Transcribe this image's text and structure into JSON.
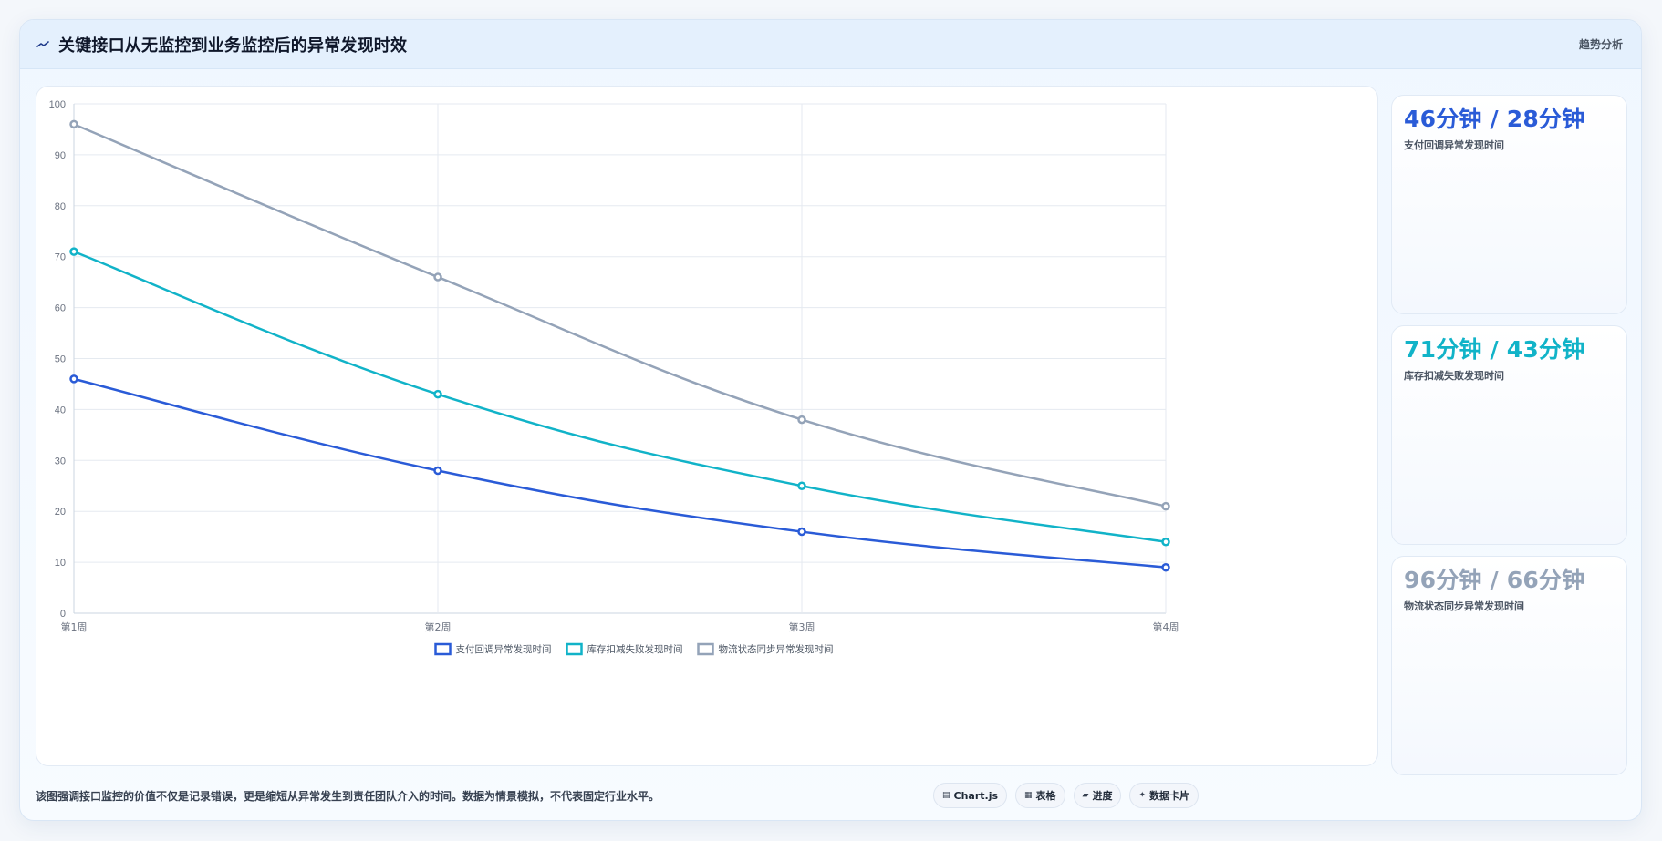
{
  "header": {
    "title": "关键接口从无监控到业务监控后的异常发现时效",
    "tag": "趋势分析"
  },
  "stats": [
    {
      "value": "46分钟 / 28分钟",
      "label": "支付回调异常发现时间",
      "color": "#2a5bd7"
    },
    {
      "value": "71分钟 / 43分钟",
      "label": "库存扣减失败发现时间",
      "color": "#11b3c8"
    },
    {
      "value": "96分钟 / 66分钟",
      "label": "物流状态同步异常发现时间",
      "color": "#94a3b8"
    }
  ],
  "footer": {
    "note": "该图强调接口监控的价值不仅是记录错误，更是缩短从异常发生到责任团队介入的时间。数据为情景模拟，不代表固定行业水平。",
    "chips": [
      {
        "icon": "chart-icon",
        "glyph": "▤",
        "label": "Chart.js"
      },
      {
        "icon": "table-icon",
        "glyph": "▦",
        "label": "表格"
      },
      {
        "icon": "progress-icon",
        "glyph": "▰",
        "label": "进度"
      },
      {
        "icon": "sparkle-icon",
        "glyph": "✦",
        "label": "数据卡片"
      }
    ]
  },
  "chart_data": {
    "type": "line",
    "categories": [
      "第1周",
      "第2周",
      "第3周",
      "第4周"
    ],
    "ylim": [
      0,
      100
    ],
    "yticks": [
      0,
      10,
      20,
      30,
      40,
      50,
      60,
      70,
      80,
      90,
      100
    ],
    "grid": true,
    "legend_position": "bottom",
    "series": [
      {
        "name": "支付回调异常发现时间",
        "color": "#2a5bd7",
        "values": [
          46,
          28,
          16,
          9
        ]
      },
      {
        "name": "库存扣减失败发现时间",
        "color": "#11b3c8",
        "values": [
          71,
          43,
          25,
          14
        ]
      },
      {
        "name": "物流状态同步异常发现时间",
        "color": "#94a3b8",
        "values": [
          96,
          66,
          38,
          21
        ]
      }
    ]
  }
}
